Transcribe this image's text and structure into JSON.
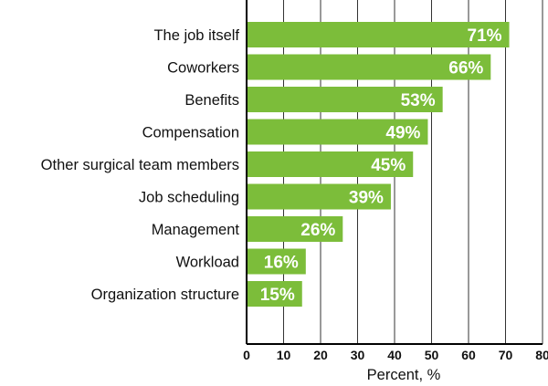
{
  "chart_data": {
    "type": "bar",
    "orientation": "horizontal",
    "categories": [
      "The job itself",
      "Coworkers",
      "Benefits",
      "Compensation",
      "Other surgical team members",
      "Job scheduling",
      "Management",
      "Workload",
      "Organization structure"
    ],
    "values": [
      71,
      66,
      53,
      49,
      45,
      39,
      26,
      16,
      15
    ],
    "value_labels": [
      "71%",
      "66%",
      "53%",
      "49%",
      "45%",
      "39%",
      "26%",
      "16%",
      "15%"
    ],
    "title": "",
    "xlabel": "Percent, %",
    "ylabel": "",
    "xlim": [
      0,
      80
    ],
    "x_ticks": [
      0,
      10,
      20,
      30,
      40,
      50,
      60,
      70,
      80
    ],
    "grid": "vertical",
    "legend": "none",
    "bar_color": "#7cbd3a",
    "label_color": "#ffffff"
  }
}
